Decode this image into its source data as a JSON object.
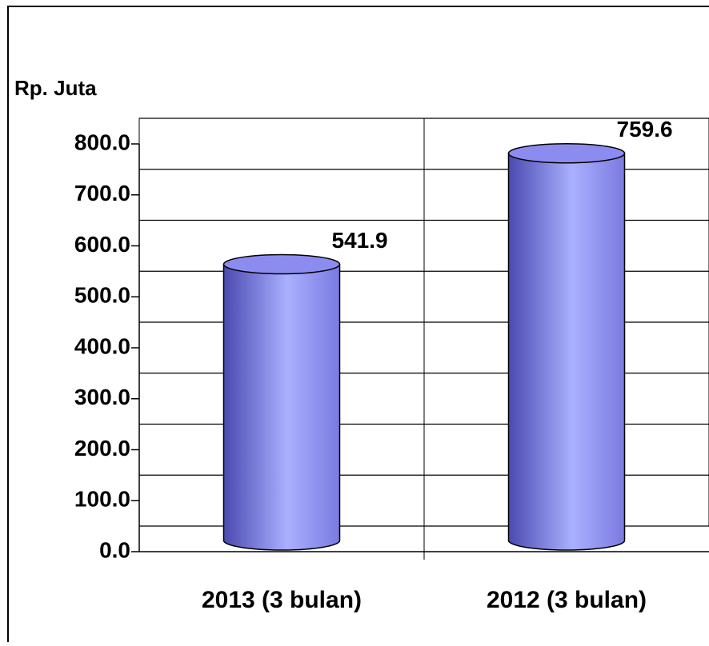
{
  "chart_data": {
    "type": "bar",
    "y_axis_label": "Rp. Juta",
    "categories": [
      "2013 (3 bulan)",
      "2012 (3 bulan)"
    ],
    "values": [
      541.9,
      759.6
    ],
    "color": "#8c8cf0",
    "ylim": [
      0,
      800
    ],
    "yticks": [
      {
        "value": 0,
        "label": "0.0"
      },
      {
        "value": 100,
        "label": "100.0"
      },
      {
        "value": 200,
        "label": "200.0"
      },
      {
        "value": 300,
        "label": "300.0"
      },
      {
        "value": 400,
        "label": "400.0"
      },
      {
        "value": 500,
        "label": "500.0"
      },
      {
        "value": 600,
        "label": "600.0"
      },
      {
        "value": 700,
        "label": "700.0"
      },
      {
        "value": 800,
        "label": "800.0"
      }
    ],
    "grid": true
  }
}
